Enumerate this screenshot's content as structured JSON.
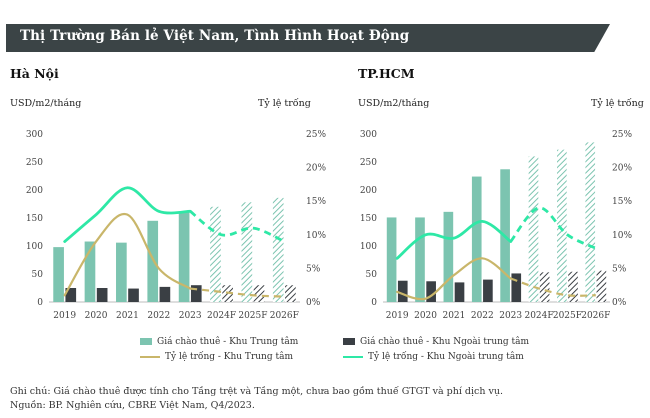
{
  "header": {
    "title": "Thị Trường Bán lẻ Việt Nam, Tình Hình Hoạt Động"
  },
  "legend": {
    "rent_cbd": "Giá chào thuê - Khu Trung tâm",
    "rent_noncbd": "Giá chào thuê - Khu Ngoài trung tâm",
    "vac_cbd": "Tỷ lệ trống - Khu Trung tâm",
    "vac_noncbd": "Tỷ lệ trống - Khu Ngoài trung tâm"
  },
  "notes": {
    "line1": "Ghi chú: Giá chào thuê được tính cho Tầng trệt và Tầng một, chưa bao gồm thuế GTGT và phí dịch vụ.",
    "line2": "Nguồn: BP. Nghiên cứu, CBRE Việt Nam, Q4/2023."
  },
  "colors": {
    "title_bg": "#3b4446",
    "rent_cbd": "#7cc4b0",
    "rent_noncbd": "#3a3f44",
    "vac_cbd": "#c9b66a",
    "vac_noncbd": "#2ee8a6"
  },
  "chart_data": [
    {
      "type": "bar",
      "title": "Hà Nội",
      "ylabel": "USD/m2/tháng",
      "y2label": "Tỷ lệ trống",
      "ylim": [
        0,
        300
      ],
      "y2lim": [
        0,
        25
      ],
      "yticks": [
        "0",
        "50",
        "100",
        "150",
        "200",
        "250",
        "300"
      ],
      "y2ticks": [
        "0%",
        "5%",
        "10%",
        "15%",
        "20%",
        "25%"
      ],
      "categories": [
        "2019",
        "2020",
        "2021",
        "2022",
        "2023",
        "2024F",
        "2025F",
        "2026F"
      ],
      "forecast_from_index": 5,
      "series": [
        {
          "name": "Giá chào thuê - Khu Trung tâm",
          "type": "bar",
          "axis": "left",
          "values": [
            98,
            108,
            106,
            145,
            162,
            170,
            178,
            186
          ]
        },
        {
          "name": "Giá chào thuê - Khu Ngoài trung tâm",
          "type": "bar",
          "axis": "left",
          "values": [
            25,
            25,
            24,
            27,
            30,
            30,
            30,
            30
          ]
        },
        {
          "name": "Tỷ lệ trống - Khu Trung tâm",
          "type": "line",
          "axis": "right",
          "values": [
            1.0,
            9.0,
            13.0,
            5.0,
            2.0,
            1.5,
            1.0,
            0.8
          ]
        },
        {
          "name": "Tỷ lệ trống - Khu Ngoài trung tâm",
          "type": "line",
          "axis": "right",
          "values": [
            9.0,
            13.0,
            17.0,
            13.5,
            13.5,
            10.0,
            11.0,
            9.0
          ]
        }
      ]
    },
    {
      "type": "bar",
      "title": "TP.HCM",
      "ylabel": "USD/m2/tháng",
      "y2label": "Tỷ lệ trống",
      "ylim": [
        0,
        300
      ],
      "y2lim": [
        0,
        25
      ],
      "yticks": [
        "0",
        "50",
        "100",
        "150",
        "200",
        "250",
        "300"
      ],
      "y2ticks": [
        "0%",
        "5%",
        "10%",
        "15%",
        "20%",
        "25%"
      ],
      "categories": [
        "2019",
        "2020",
        "2021",
        "2022",
        "2023",
        "2024F",
        "2025F",
        "2026F"
      ],
      "forecast_from_index": 5,
      "series": [
        {
          "name": "Giá chào thuê - Khu Trung tâm",
          "type": "bar",
          "axis": "left",
          "values": [
            151,
            151,
            161,
            224,
            237,
            260,
            272,
            285
          ]
        },
        {
          "name": "Giá chào thuê - Khu Ngoài trung tâm",
          "type": "bar",
          "axis": "left",
          "values": [
            38,
            37,
            35,
            40,
            51,
            53,
            54,
            56
          ]
        },
        {
          "name": "Tỷ lệ trống - Khu Trung tâm",
          "type": "line",
          "axis": "right",
          "values": [
            1.5,
            0.5,
            4.0,
            6.5,
            3.5,
            2.0,
            1.0,
            1.0
          ]
        },
        {
          "name": "Tỷ lệ trống - Khu Ngoài trung tâm",
          "type": "line",
          "axis": "right",
          "values": [
            6.5,
            10.0,
            9.5,
            12.0,
            9.0,
            14.0,
            10.0,
            8.0
          ]
        }
      ]
    }
  ]
}
